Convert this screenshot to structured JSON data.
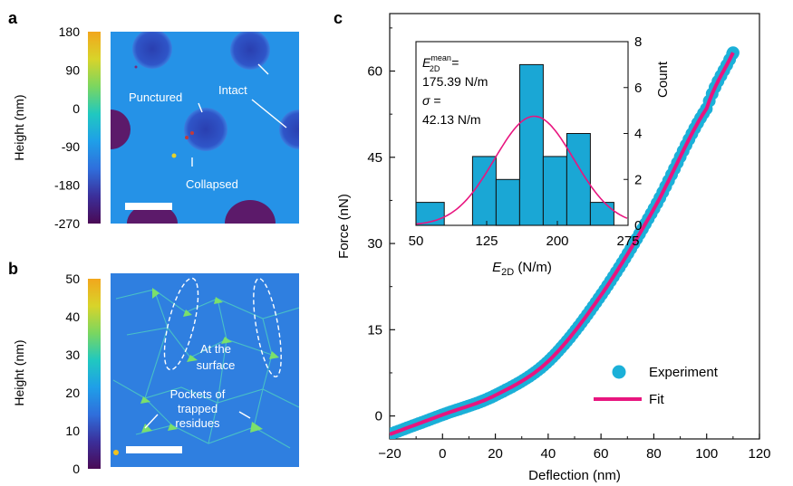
{
  "panel_a": {
    "letter": "a",
    "colorbar_label": "Height (nm)",
    "colorbar_ticks": [
      "180",
      "90",
      "0",
      "-90",
      "-180",
      "-270"
    ],
    "colormap": [
      "#4a0a55",
      "#3b2f9a",
      "#2f6fdc",
      "#1f9fe8",
      "#20c8c0",
      "#7ad660",
      "#d8d42a",
      "#f2a61c"
    ],
    "annotations": {
      "punctured": "Punctured",
      "intact": "Intact",
      "collapsed": "Collapsed"
    }
  },
  "panel_b": {
    "letter": "b",
    "colorbar_label": "Height (nm)",
    "colorbar_ticks": [
      "50",
      "40",
      "30",
      "20",
      "10",
      "0"
    ],
    "annotations": {
      "surface_line1": "At the",
      "surface_line2": "surface",
      "pockets_line1": "Pockets of",
      "pockets_line2": "trapped",
      "pockets_line3": "residues"
    }
  },
  "panel_c": {
    "letter": "c",
    "xlabel": "Deflection (nm)",
    "ylabel": "Force (nN)",
    "x_ticks": [
      "−20",
      "0",
      "20",
      "40",
      "60",
      "80",
      "100",
      "120"
    ],
    "y_ticks": [
      "0",
      "15",
      "30",
      "45",
      "60"
    ],
    "legend": {
      "experiment": "Experiment",
      "fit": "Fit"
    },
    "inset": {
      "xlabel_main": "E",
      "xlabel_sub": "2D",
      "xlabel_unit": " (N/m)",
      "ylabel": "Count",
      "x_ticks": [
        "50",
        "125",
        "200",
        "275"
      ],
      "y_ticks": [
        "0",
        "2",
        "4",
        "6",
        "8"
      ],
      "stats_e_main": "E",
      "stats_e_sup": "mean",
      "stats_e_sub": "2D",
      "stats_eq": " =",
      "stats_mean_value": "175.39 N/m",
      "stats_sigma_symbol": "σ",
      "stats_sigma_value": "42.13 N/m"
    }
  },
  "chart_data": [
    {
      "type": "scatter",
      "xlabel": "Deflection (nm)",
      "ylabel": "Force (nN)",
      "xlim": [
        -20,
        120
      ],
      "ylim": [
        -4,
        70
      ],
      "series": [
        {
          "name": "Experiment",
          "x_range": [
            -20,
            110
          ],
          "y_at_x": {
            "-20": -3.2,
            "0": 0.2,
            "20": 3.6,
            "40": 9.5,
            "60": 21,
            "80": 36,
            "100": 53.5,
            "110": 63.2
          }
        },
        {
          "name": "Fit",
          "x_range": [
            -20,
            110
          ],
          "y_at_x": {
            "-20": -3.2,
            "0": 0.2,
            "20": 3.6,
            "40": 9.5,
            "60": 21,
            "80": 36,
            "100": 53.5,
            "110": 63.2
          }
        }
      ],
      "colors": {
        "experiment": "#1bb0d8",
        "fit": "#e8157f"
      }
    },
    {
      "type": "bar",
      "xlabel": "E2D (N/m)",
      "ylabel": "Count",
      "xlim": [
        50,
        275
      ],
      "ylim": [
        0,
        8
      ],
      "bin_edges": [
        50,
        80,
        110,
        125,
        150,
        175,
        200,
        225,
        250,
        275
      ],
      "bins": [
        {
          "start": 50,
          "end": 80,
          "count": 1
        },
        {
          "start": 110,
          "end": 135,
          "count": 3
        },
        {
          "start": 135,
          "end": 160,
          "count": 2
        },
        {
          "start": 160,
          "end": 185,
          "count": 7
        },
        {
          "start": 185,
          "end": 210,
          "count": 3
        },
        {
          "start": 210,
          "end": 235,
          "count": 4
        },
        {
          "start": 235,
          "end": 260,
          "count": 1
        }
      ],
      "fit": {
        "type": "gaussian",
        "mean": 175.39,
        "sigma": 42.13,
        "peak_count": 4.75
      },
      "colors": {
        "bar": "#1aa7d5",
        "curve": "#e8157f"
      }
    }
  ]
}
